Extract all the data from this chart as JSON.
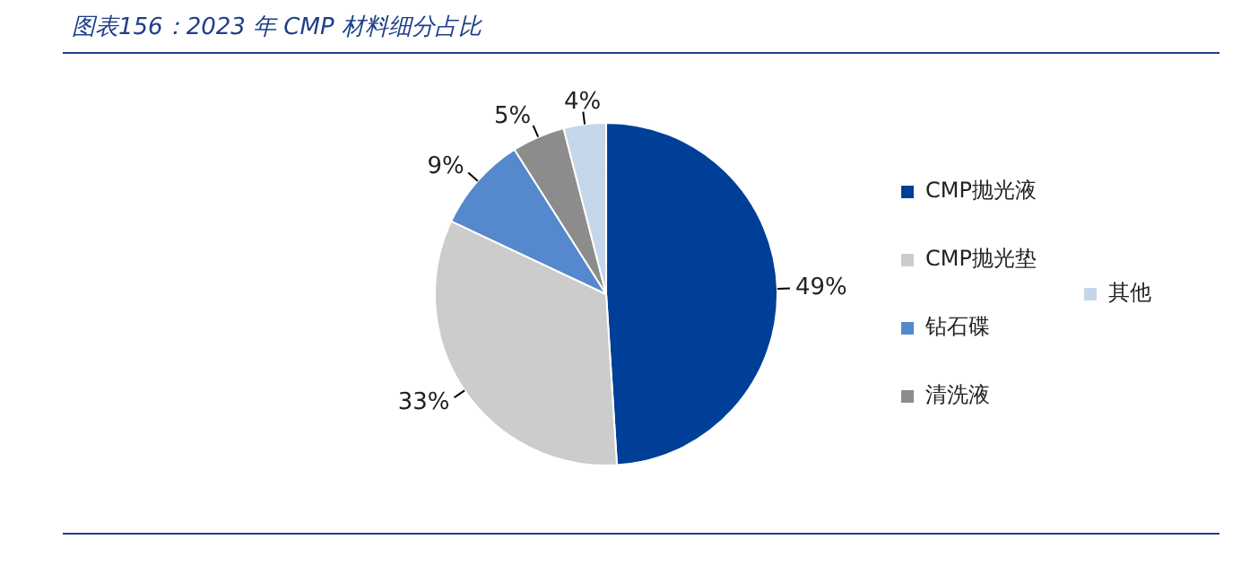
{
  "chart_data": {
    "type": "pie",
    "title": "图表156：2023 年 CMP 材料细分占比",
    "categories": [
      "CMP抛光液",
      "CMP抛光垫",
      "钻石碟",
      "清洗液",
      "其他"
    ],
    "values": [
      49,
      33,
      9,
      5,
      4
    ],
    "colors": [
      "#003f98",
      "#cccccc",
      "#5588cc",
      "#8c8c8c",
      "#c5d5ea"
    ],
    "value_labels": [
      "49%",
      "33%",
      "9%",
      "5%",
      "4%"
    ],
    "legend": "right"
  }
}
